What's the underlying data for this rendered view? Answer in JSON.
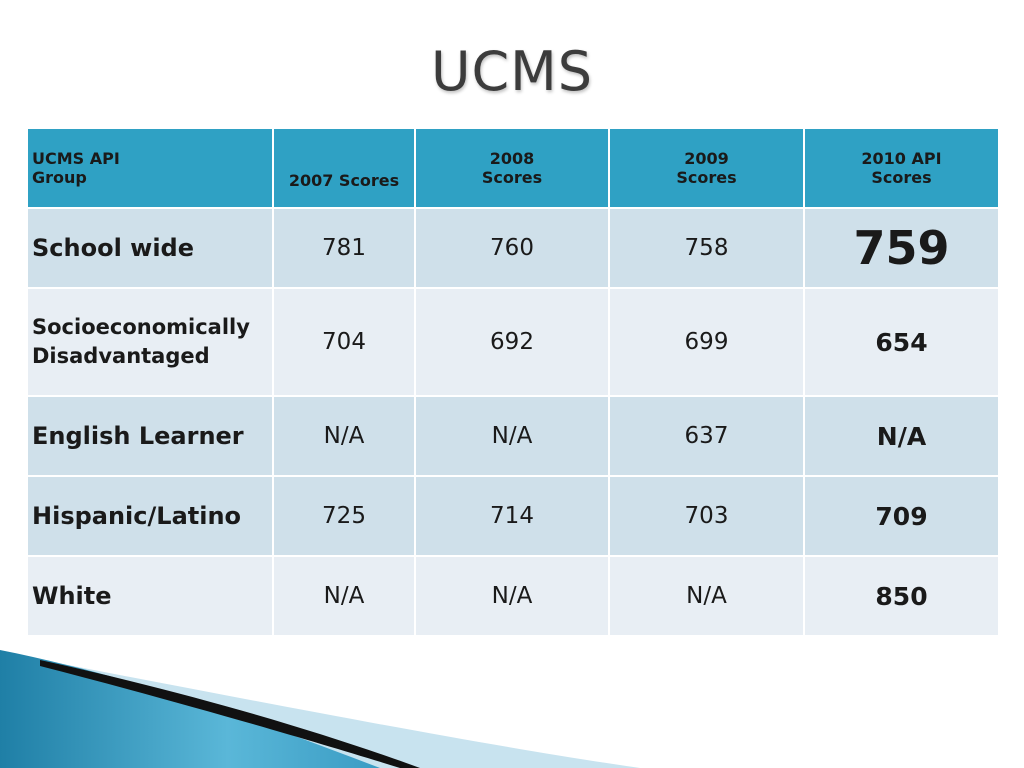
{
  "slide": {
    "title": "UCMS"
  },
  "table": {
    "headers": [
      {
        "line1": "UCMS API",
        "line2": "Group"
      },
      {
        "line1": "2007 Scores",
        "line2": ""
      },
      {
        "line1": "2008",
        "line2": "Scores"
      },
      {
        "line1": "2009",
        "line2": "Scores"
      },
      {
        "line1": "2010 API",
        "line2": "Scores"
      }
    ],
    "rows": [
      {
        "group_line1": "School wide",
        "group_line2": "",
        "y2007": "781",
        "y2008": "760",
        "y2009": "758",
        "y2010": "759"
      },
      {
        "group_line1": "Socioeconomically",
        "group_line2": "Disadvantaged",
        "y2007": "704",
        "y2008": "692",
        "y2009": "699",
        "y2010": "654"
      },
      {
        "group_line1": "English Learner",
        "group_line2": "",
        "y2007": "N/A",
        "y2008": "N/A",
        "y2009": "637",
        "y2010": "N/A"
      },
      {
        "group_line1": "Hispanic/Latino",
        "group_line2": "",
        "y2007": "725",
        "y2008": "714",
        "y2009": "703",
        "y2010": "709"
      },
      {
        "group_line1": "White",
        "group_line2": "",
        "y2007": "N/A",
        "y2008": "N/A",
        "y2009": "N/A",
        "y2010": "850"
      }
    ]
  },
  "colors": {
    "header_bg": "#2fa1c4",
    "row_dark": "#cfe0ea",
    "row_light": "#e8eef4",
    "accent_teal": "#2a8fb4"
  }
}
